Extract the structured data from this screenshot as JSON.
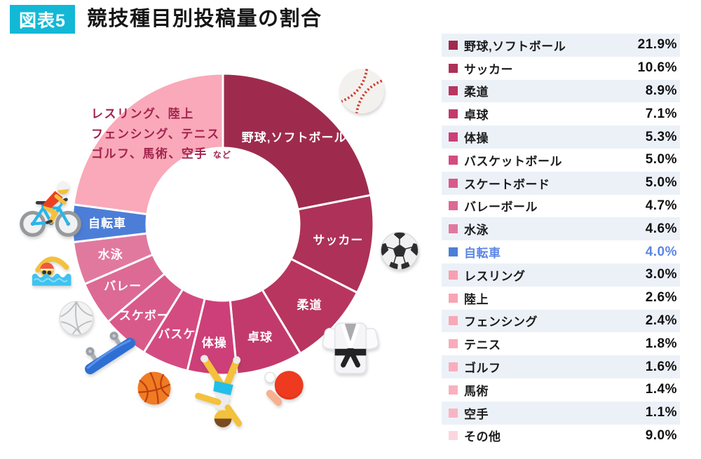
{
  "header": {
    "badge": "図表5",
    "title": "競技種目別投稿量の割合"
  },
  "colors": {
    "badge_bg": "#12b8d6",
    "highlight_blue": "#5b86e6",
    "legend_stripe": "#ecf1f8",
    "others_note_text": "#a3234e",
    "segment_label_text": "#ffffff"
  },
  "chart_data": {
    "type": "pie",
    "donut": true,
    "title": "競技種目別投稿量の割合",
    "unit": "%",
    "start_angle_deg": 0,
    "direction": "clockwise",
    "categories": [
      "野球,ソフトボール",
      "サッカー",
      "柔道",
      "卓球",
      "体操",
      "バスケットボール",
      "スケートボード",
      "バレーボール",
      "水泳",
      "自転車",
      "レスリング",
      "陸上",
      "フェンシング",
      "テニス",
      "ゴルフ",
      "馬術",
      "空手",
      "その他"
    ],
    "values": [
      21.9,
      10.6,
      8.9,
      7.1,
      5.3,
      5.0,
      5.0,
      4.7,
      4.6,
      4.0,
      3.0,
      2.6,
      2.4,
      1.8,
      1.6,
      1.4,
      1.1,
      9.0
    ],
    "segments": [
      {
        "label": "野球,ソフトボール",
        "value": 21.9,
        "color": "#9e2b4e",
        "label_r": 160
      },
      {
        "label": "サッカー",
        "value": 10.6,
        "color": "#ad3158",
        "label_r": 166
      },
      {
        "label": "柔道",
        "value": 8.9,
        "color": "#b8355f",
        "label_r": 169
      },
      {
        "label": "卓球",
        "value": 7.1,
        "color": "#c23a6b",
        "label_r": 170
      },
      {
        "label": "体操",
        "value": 5.3,
        "color": "#cd3f78",
        "label_r": 170
      },
      {
        "label": "バスケ",
        "value": 5.0,
        "color": "#d44b81",
        "label_r": 170
      },
      {
        "label": "スケボー",
        "value": 5.0,
        "color": "#d85a8a",
        "label_r": 172
      },
      {
        "label": "バレー",
        "value": 4.7,
        "color": "#dc6a94",
        "label_r": 168
      },
      {
        "label": "水泳",
        "value": 4.6,
        "color": "#e1799f",
        "label_r": 166
      },
      {
        "label": "自転車",
        "value": 4.0,
        "color": "#4c7ed8",
        "label_r": 165
      },
      {
        "label": "",
        "value": 22.9,
        "color": "#f9a9b9",
        "label_r": 0
      }
    ],
    "others_note": {
      "line1": "レスリング、陸上",
      "line2": "フェンシング、テニス",
      "line3": "ゴルフ、馬術、空手",
      "suffix": "など"
    }
  },
  "legend": {
    "rows": [
      {
        "label": "野球,ソフトボール",
        "pct": "21.9%",
        "color": "#9e2b4e"
      },
      {
        "label": "サッカー",
        "pct": "10.6%",
        "color": "#ad3158"
      },
      {
        "label": "柔道",
        "pct": "8.9%",
        "color": "#b8355f"
      },
      {
        "label": "卓球",
        "pct": "7.1%",
        "color": "#c23a6b"
      },
      {
        "label": "体操",
        "pct": "5.3%",
        "color": "#cd3f78"
      },
      {
        "label": "バスケットボール",
        "pct": "5.0%",
        "color": "#d44b81"
      },
      {
        "label": "スケートボード",
        "pct": "5.0%",
        "color": "#d85a8a"
      },
      {
        "label": "バレーボール",
        "pct": "4.7%",
        "color": "#dc6a94"
      },
      {
        "label": "水泳",
        "pct": "4.6%",
        "color": "#e1799f"
      },
      {
        "label": "自転車",
        "pct": "4.0%",
        "color": "#4c7ed8",
        "highlight": true,
        "text_color": "#5b86e6"
      },
      {
        "label": "レスリング",
        "pct": "3.0%",
        "color": "#f7a0b0"
      },
      {
        "label": "陸上",
        "pct": "2.6%",
        "color": "#f8a4b4"
      },
      {
        "label": "フェンシング",
        "pct": "2.4%",
        "color": "#f8a8b7"
      },
      {
        "label": "テニス",
        "pct": "1.8%",
        "color": "#f9abba"
      },
      {
        "label": "ゴルフ",
        "pct": "1.6%",
        "color": "#f9aebd"
      },
      {
        "label": "馬術",
        "pct": "1.4%",
        "color": "#f9b1bf"
      },
      {
        "label": "空手",
        "pct": "1.1%",
        "color": "#f9b4c2"
      },
      {
        "label": "その他",
        "pct": "9.0%",
        "color": "#fcd6de"
      }
    ]
  },
  "icons": {
    "decorative": [
      "baseball-icon",
      "soccer-ball-icon",
      "judo-uniform-icon",
      "table-tennis-icon",
      "cartwheel-gymnast-icon",
      "basketball-icon",
      "skateboard-icon",
      "volleyball-icon",
      "swimmer-icon",
      "cyclist-icon"
    ]
  }
}
